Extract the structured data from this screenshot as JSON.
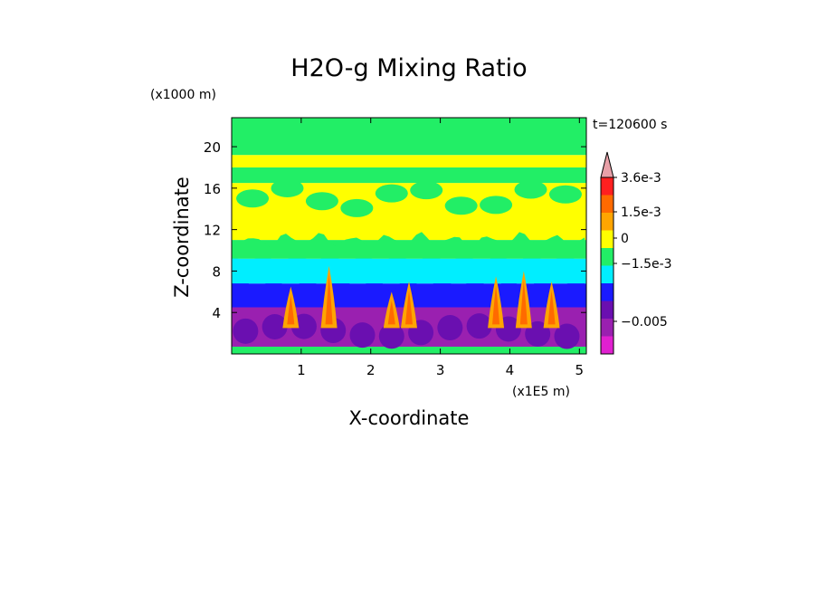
{
  "chart_data": {
    "type": "heatmap",
    "title": "H2O-g Mixing Ratio",
    "xlabel": "X-coordinate",
    "ylabel": "Z-coordinate",
    "x_unit": "(x1E5 m)",
    "y_unit": "(x1000 m)",
    "time_label": "t=120600 s",
    "xlim": [
      0,
      5.1
    ],
    "ylim": [
      0,
      22.8
    ],
    "x_ticks": [
      "1",
      "2",
      "3",
      "4",
      "5"
    ],
    "x_tick_values": [
      1,
      2,
      3,
      4,
      5
    ],
    "y_ticks": [
      "4",
      "8",
      "12",
      "16",
      "20"
    ],
    "y_tick_values": [
      4,
      8,
      12,
      16,
      20
    ],
    "colorbar": {
      "labels": [
        "3.6e-3",
        "1.5e-3",
        "0",
        "−1.5e-3",
        "−0.005"
      ],
      "levels": [
        {
          "color": "#e8a0a8"
        },
        {
          "color": "#ff2020"
        },
        {
          "color": "#ff6a00"
        },
        {
          "color": "#ffa500"
        },
        {
          "color": "#ffff00"
        },
        {
          "color": "#22ee66"
        },
        {
          "color": "#00eeff"
        },
        {
          "color": "#1a1aff"
        },
        {
          "color": "#6a0fb0"
        },
        {
          "color": "#9a20b0"
        },
        {
          "color": "#e020d0"
        }
      ]
    },
    "bands": [
      {
        "z": [
          0.0,
          0.7
        ],
        "color": "#22ee66"
      },
      {
        "z": [
          0.7,
          4.5
        ],
        "color": "#9a20b0"
      },
      {
        "z": [
          4.5,
          6.8
        ],
        "color": "#1a1aff"
      },
      {
        "z": [
          6.8,
          9.2
        ],
        "color": "#00eeff"
      },
      {
        "z": [
          9.2,
          11.0
        ],
        "color": "#22ee66"
      },
      {
        "z": [
          11.0,
          16.5
        ],
        "color": "#ffff00"
      },
      {
        "z": [
          16.5,
          18.0
        ],
        "color": "#22ee66"
      },
      {
        "z": [
          18.0,
          19.2
        ],
        "color": "#ffff00"
      },
      {
        "z": [
          19.2,
          22.8
        ],
        "color": "#22ee66"
      }
    ],
    "plumes": [
      {
        "x": 0.85,
        "zTop": 6.5
      },
      {
        "x": 1.4,
        "zTop": 8.5
      },
      {
        "x": 2.3,
        "zTop": 6.0
      },
      {
        "x": 2.55,
        "zTop": 7.0
      },
      {
        "x": 3.8,
        "zTop": 7.5
      },
      {
        "x": 4.2,
        "zTop": 8.0
      },
      {
        "x": 4.6,
        "zTop": 7.0
      }
    ]
  }
}
